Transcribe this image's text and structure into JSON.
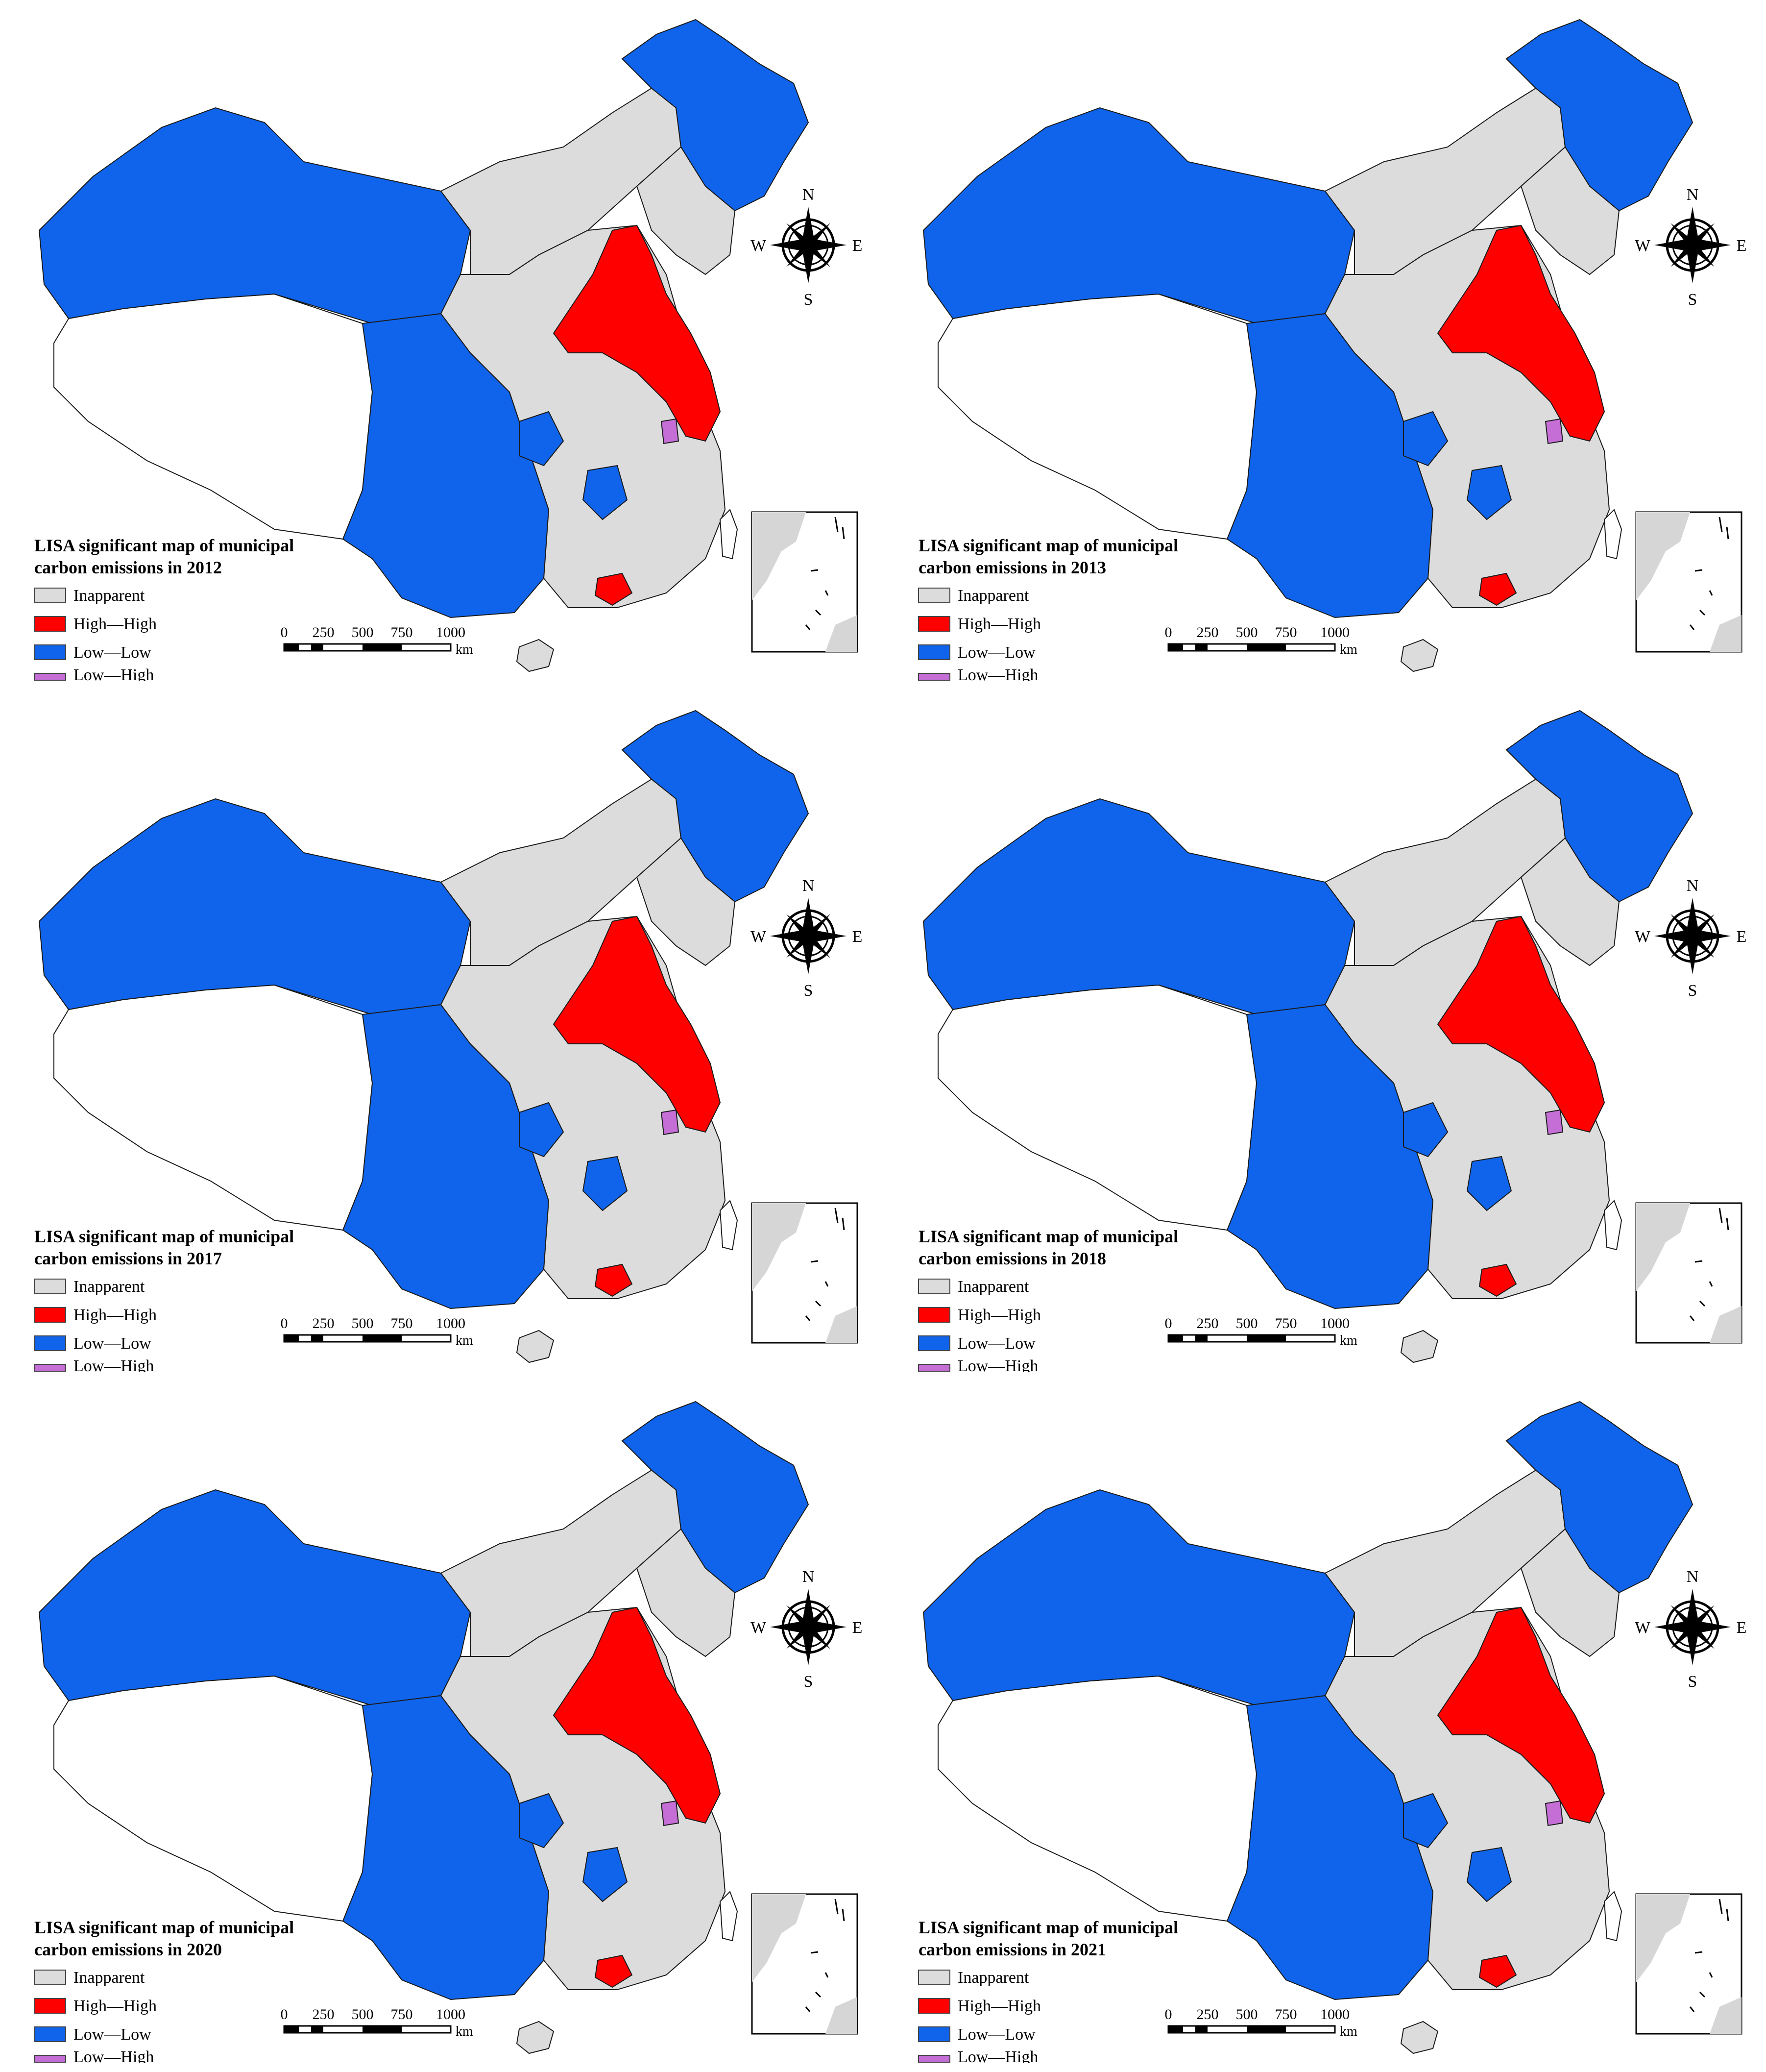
{
  "colors": {
    "inapparent": "#dcdcdc",
    "high_high": "#ff0000",
    "low_low": "#0f64eb",
    "low_high": "#c56ed6",
    "no_data": "#ffffff",
    "border": "#1a1a1a"
  },
  "icons": {
    "north_arrow": "compass-rose-icon",
    "inset": "south-china-sea-inset-icon",
    "scale_bar": "scale-bar-icon"
  },
  "compass": {
    "n": "N",
    "s": "S",
    "e": "E",
    "w": "W"
  },
  "scale": {
    "ticks": [
      "0",
      "250",
      "500",
      "750",
      "1000"
    ],
    "unit": "km"
  },
  "legend_labels": {
    "inapparent": "Inapparent",
    "high_high": "High—High",
    "low_low": "Low—Low",
    "low_high": "Low—High"
  },
  "panels": [
    {
      "year": "2012",
      "title_line1": "LISA significant map of municipal",
      "title_line2": "carbon emissions in 2012"
    },
    {
      "year": "2013",
      "title_line1": "LISA significant map of municipal",
      "title_line2": "carbon emissions in 2013"
    },
    {
      "year": "2017",
      "title_line1": "LISA significant map of municipal",
      "title_line2": "carbon emissions in 2017"
    },
    {
      "year": "2018",
      "title_line1": "LISA significant map of municipal",
      "title_line2": "carbon emissions in 2018"
    },
    {
      "year": "2020",
      "title_line1": "LISA significant map of municipal",
      "title_line2": "carbon emissions in 2020"
    },
    {
      "year": "2021",
      "title_line1": "LISA significant map of municipal",
      "title_line2": "carbon emissions in 2021"
    }
  ]
}
